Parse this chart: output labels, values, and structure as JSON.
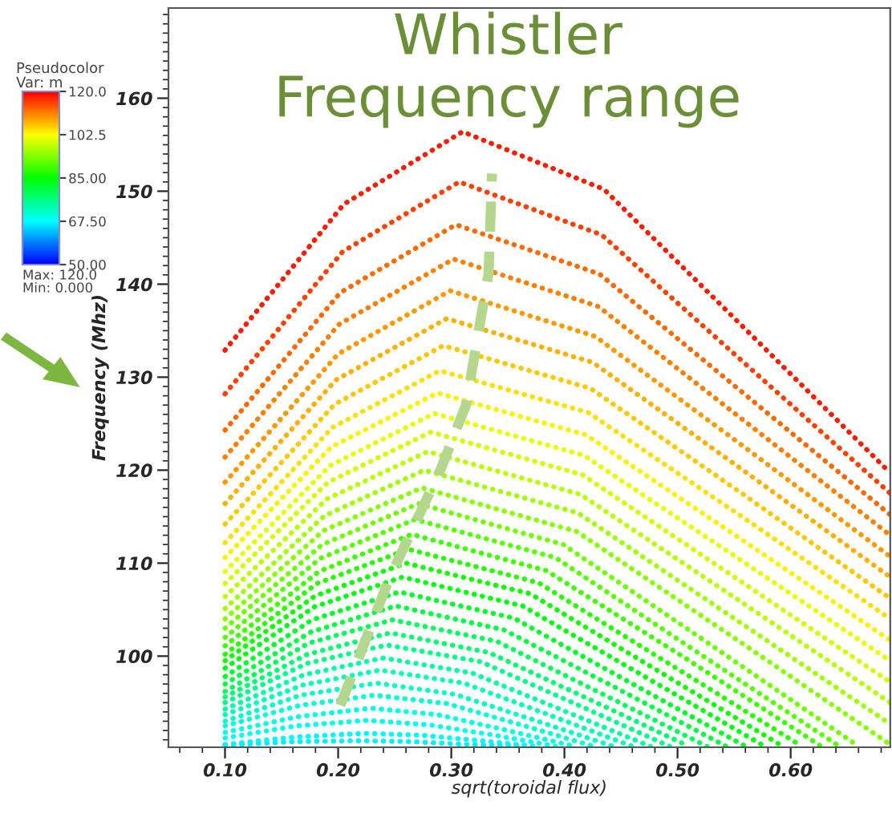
{
  "chart_data": {
    "type": "line",
    "xlabel": "sqrt(toroidal flux)",
    "ylabel": "Frequency (Mhz)",
    "xlim": [
      0.05,
      0.688
    ],
    "ylim": [
      90.2,
      169.7
    ],
    "xticks": [
      {
        "value": 0.1,
        "label": "0.10"
      },
      {
        "value": 0.2,
        "label": "0.20"
      },
      {
        "value": 0.3,
        "label": "0.30"
      },
      {
        "value": 0.4,
        "label": "0.40"
      },
      {
        "value": 0.5,
        "label": "0.50"
      },
      {
        "value": 0.6,
        "label": "0.60"
      }
    ],
    "yticks": [
      100,
      110,
      120,
      130,
      140,
      150,
      160
    ],
    "clim": [
      50,
      120
    ],
    "cticks": [
      {
        "value": 50,
        "label": "50.00"
      },
      {
        "value": 67.5,
        "label": "67.50"
      },
      {
        "value": 85,
        "label": "85.00"
      },
      {
        "value": 102.5,
        "label": "102.5"
      },
      {
        "value": 120,
        "label": "120.0"
      }
    ],
    "annotations": [
      "Whistler\nFrequency range",
      "Pseudocolor",
      "Var: m",
      "Max: 120.0",
      "Min: 0.000"
    ],
    "line_style": "dotted",
    "grid": false,
    "series": [
      {
        "color": "#ff1a00",
        "x": [
          0.1,
          0.205,
          0.31,
          0.435,
          0.563,
          0.688
        ],
        "values": [
          132.9,
          148.6,
          156.4,
          150.2,
          134.8,
          119.7
        ]
      },
      {
        "color": "#ff4000",
        "x": [
          0.1,
          0.204,
          0.307,
          0.433,
          0.562,
          0.688
        ],
        "values": [
          128.2,
          143.5,
          151.0,
          145.3,
          131.2,
          117.5
        ]
      },
      {
        "color": "#ff6a00",
        "x": [
          0.1,
          0.202,
          0.304,
          0.431,
          0.561,
          0.688
        ],
        "values": [
          124.3,
          139.1,
          146.4,
          141.1,
          128.0,
          115.2
        ]
      },
      {
        "color": "#ff8000",
        "x": [
          0.1,
          0.201,
          0.302,
          0.43,
          0.56,
          0.688
        ],
        "values": [
          121.4,
          135.7,
          142.7,
          137.6,
          125.2,
          113.0
        ]
      },
      {
        "color": "#ff9900",
        "x": [
          0.1,
          0.2,
          0.299,
          0.427,
          0.56,
          0.688
        ],
        "values": [
          118.7,
          132.5,
          139.3,
          134.4,
          122.4,
          110.7
        ]
      },
      {
        "color": "#ffb000",
        "x": [
          0.1,
          0.198,
          0.296,
          0.425,
          0.559,
          0.688
        ],
        "values": [
          116.4,
          129.7,
          136.3,
          131.6,
          119.9,
          108.5
        ]
      },
      {
        "color": "#ffc800",
        "x": [
          0.1,
          0.197,
          0.293,
          0.423,
          0.558,
          0.688
        ],
        "values": [
          114.2,
          127.1,
          133.4,
          128.8,
          117.4,
          106.2
        ]
      },
      {
        "color": "#ffe000",
        "x": [
          0.1,
          0.195,
          0.29,
          0.421,
          0.557,
          0.688
        ],
        "values": [
          112.2,
          124.6,
          130.7,
          126.2,
          115.0,
          104.0
        ]
      },
      {
        "color": "#fff200",
        "x": [
          0.1,
          0.194,
          0.288,
          0.419,
          0.556,
          0.688
        ],
        "values": [
          110.6,
          122.5,
          128.3,
          123.8,
          112.6,
          101.7
        ]
      },
      {
        "color": "#e8ff00",
        "x": [
          0.1,
          0.193,
          0.285,
          0.417,
          0.555,
          0.688
        ],
        "values": [
          109.1,
          120.5,
          126.1,
          121.6,
          110.4,
          99.5
        ]
      },
      {
        "color": "#d0ff00",
        "x": [
          0.1,
          0.191,
          0.282,
          0.416,
          0.554,
          0.688
        ],
        "values": [
          107.8,
          118.7,
          124.1,
          119.5,
          108.2,
          97.2
        ]
      },
      {
        "color": "#b8ff00",
        "x": [
          0.1,
          0.19,
          0.279,
          0.414,
          0.553,
          0.688
        ],
        "values": [
          106.4,
          116.9,
          122.0,
          117.4,
          106.1,
          95.0
        ]
      },
      {
        "color": "#a0ff00",
        "x": [
          0.1,
          0.188,
          0.276,
          0.412,
          0.552,
          0.688
        ],
        "values": [
          105.1,
          115.1,
          120.0,
          115.4,
          103.9,
          92.7
        ]
      },
      {
        "color": "#88ff00",
        "x": [
          0.1,
          0.187,
          0.274,
          0.411,
          0.552,
          0.688
        ],
        "values": [
          104.0,
          113.5,
          118.1,
          113.4,
          101.8,
          90.5
        ]
      },
      {
        "color": "#70ff00",
        "x": [
          0.1,
          0.186,
          0.271,
          0.399,
          0.532,
          0.66
        ],
        "values": [
          103.0,
          112.0,
          116.4,
          112.0,
          101.0,
          90.3
        ]
      },
      {
        "color": "#58ff00",
        "x": [
          0.1,
          0.184,
          0.268,
          0.392,
          0.519,
          0.643
        ],
        "values": [
          102.0,
          110.5,
          114.7,
          110.6,
          100.3,
          90.3
        ]
      },
      {
        "color": "#40ff00",
        "x": [
          0.1,
          0.183,
          0.265,
          0.384,
          0.508,
          0.627
        ],
        "values": [
          101.1,
          109.1,
          113.1,
          109.2,
          99.7,
          90.3
        ]
      },
      {
        "color": "#28ff00",
        "x": [
          0.1,
          0.181,
          0.262,
          0.377,
          0.495,
          0.61
        ],
        "values": [
          100.2,
          107.8,
          111.5,
          107.9,
          99.0,
          90.3
        ]
      },
      {
        "color": "#10ff00",
        "x": [
          0.1,
          0.18,
          0.26,
          0.37,
          0.483,
          0.593
        ],
        "values": [
          99.5,
          106.5,
          110.0,
          106.7,
          98.4,
          90.3
        ]
      },
      {
        "color": "#00ff10",
        "x": [
          0.1,
          0.179,
          0.257,
          0.363,
          0.471,
          0.577
        ],
        "values": [
          98.7,
          105.3,
          108.5,
          105.4,
          97.8,
          90.3
        ]
      },
      {
        "color": "#00ff28",
        "x": [
          0.1,
          0.177,
          0.254,
          0.355,
          0.459,
          0.56
        ],
        "values": [
          97.8,
          103.9,
          106.9,
          104.1,
          97.1,
          90.3
        ]
      },
      {
        "color": "#00ff40",
        "x": [
          0.1,
          0.176,
          0.251,
          0.347,
          0.447,
          0.543
        ],
        "values": [
          97.0,
          102.6,
          105.4,
          102.8,
          96.5,
          90.3
        ]
      },
      {
        "color": "#00ff58",
        "x": [
          0.1,
          0.174,
          0.248,
          0.34,
          0.434,
          0.526
        ],
        "values": [
          96.2,
          101.4,
          103.9,
          101.6,
          95.9,
          90.3
        ]
      },
      {
        "color": "#00ff70",
        "x": [
          0.1,
          0.173,
          0.246,
          0.333,
          0.423,
          0.51
        ],
        "values": [
          95.6,
          100.2,
          102.5,
          100.4,
          95.3,
          90.3
        ]
      },
      {
        "color": "#00ff88",
        "x": [
          0.1,
          0.172,
          0.243,
          0.326,
          0.411,
          0.493
        ],
        "values": [
          95.0,
          99.2,
          101.2,
          99.4,
          94.8,
          90.3
        ]
      },
      {
        "color": "#00ffa0",
        "x": [
          0.1,
          0.17,
          0.24,
          0.318,
          0.398,
          0.476
        ],
        "values": [
          94.3,
          98.0,
          99.8,
          98.2,
          94.2,
          90.3
        ]
      },
      {
        "color": "#00ffb8",
        "x": [
          0.1,
          0.169,
          0.237,
          0.311,
          0.386,
          0.46
        ],
        "values": [
          93.7,
          96.9,
          98.5,
          97.1,
          93.7,
          90.3
        ]
      },
      {
        "color": "#00ffc8",
        "x": [
          0.1,
          0.167,
          0.234,
          0.303,
          0.374,
          0.443
        ],
        "values": [
          93.0,
          95.8,
          97.1,
          95.9,
          93.1,
          90.3
        ]
      },
      {
        "color": "#00ffd8",
        "x": [
          0.1,
          0.166,
          0.232,
          0.296,
          0.362,
          0.426
        ],
        "values": [
          92.5,
          94.7,
          95.8,
          94.9,
          92.6,
          90.3
        ]
      },
      {
        "color": "#00ffe8",
        "x": [
          0.1,
          0.165,
          0.229,
          0.288,
          0.35,
          0.409
        ],
        "values": [
          91.8,
          93.5,
          94.4,
          93.7,
          92.0,
          90.3
        ]
      },
      {
        "color": "#00fff0",
        "x": [
          0.1,
          0.163,
          0.226,
          0.281,
          0.338,
          0.393
        ],
        "values": [
          91.2,
          92.5,
          93.1,
          92.6,
          91.5,
          90.3
        ]
      },
      {
        "color": "#00f8ff",
        "x": [
          0.1,
          0.162,
          0.223,
          0.273,
          0.326,
          0.376
        ],
        "values": [
          90.5,
          91.3,
          91.7,
          91.5,
          90.9,
          90.3
        ]
      },
      {
        "color": "#00f0ff",
        "x": [
          0.1,
          0.16,
          0.22,
          0.266,
          0.314,
          0.36
        ],
        "values": [
          90.4,
          90.8,
          90.9,
          90.8,
          90.5,
          90.3
        ]
      },
      {
        "color": "#b5d68d",
        "line_style": "dashed",
        "x": [
          0.202,
          0.245,
          0.291,
          0.313,
          0.333,
          0.336
        ],
        "values": [
          94.7,
          108.3,
          120.2,
          127.0,
          141.2,
          151.9
        ]
      }
    ]
  }
}
